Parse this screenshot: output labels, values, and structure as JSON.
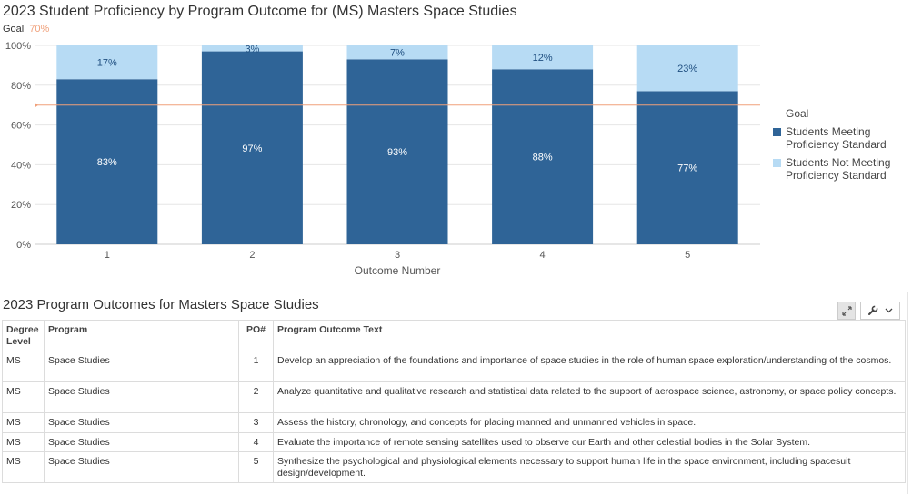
{
  "chart_data": {
    "type": "bar",
    "stacked": true,
    "title": "2023 Student Proficiency by Program Outcome for (MS) Masters Space Studies",
    "goal_label": "Goal",
    "goal_value_text": "70%",
    "goal": 70,
    "xlabel": "Outcome Number",
    "ylabel": "",
    "ylim": [
      0,
      100
    ],
    "y_ticks": [
      "0%",
      "20%",
      "40%",
      "60%",
      "80%",
      "100%"
    ],
    "categories": [
      "1",
      "2",
      "3",
      "4",
      "5"
    ],
    "series": [
      {
        "name": "Students Meeting Proficiency Standard",
        "values": [
          83,
          97,
          93,
          88,
          77
        ],
        "labels": [
          "83%",
          "97%",
          "93%",
          "88%",
          "77%"
        ],
        "color": "#2f6497"
      },
      {
        "name": "Students Not Meeting Proficiency Standard",
        "values": [
          17,
          3,
          7,
          12,
          23
        ],
        "labels": [
          "17%",
          "3%",
          "7%",
          "12%",
          "23%"
        ],
        "color": "#b7dbf4"
      }
    ],
    "goal_color": "#f0a07a",
    "grid": true,
    "legend_position": "right"
  },
  "legend": {
    "goal": "Goal",
    "meeting": "Students Meeting Proficiency Standard",
    "not_meeting": "Students Not Meeting Proficiency Standard"
  },
  "table": {
    "title": "2023 Program Outcomes for Masters Space Studies",
    "headers": {
      "degree_level": "Degree Level",
      "program": "Program",
      "po": "PO#",
      "text": "Program Outcome Text"
    },
    "rows": [
      {
        "degree": "MS",
        "program": "Space Studies",
        "po": "1",
        "text": "Develop an appreciation of the foundations and importance of space studies in the role of human space exploration/understanding of the cosmos."
      },
      {
        "degree": "MS",
        "program": "Space Studies",
        "po": "2",
        "text": "Analyze quantitative and qualitative research and statistical data related to the support of aerospace science, astronomy, or space policy concepts."
      },
      {
        "degree": "MS",
        "program": "Space Studies",
        "po": "3",
        "text": "Assess the history, chronology, and concepts for placing manned and unmanned vehicles in space."
      },
      {
        "degree": "MS",
        "program": "Space Studies",
        "po": "4",
        "text": "Evaluate the importance of remote sensing satellites used to observe our Earth and other celestial bodies in the Solar System."
      },
      {
        "degree": "MS",
        "program": "Space Studies",
        "po": "5",
        "text": "Synthesize the psychological and physiological elements necessary to support human life in the space environment, including spacesuit design/development."
      }
    ]
  },
  "toolbar": {
    "expand_icon": "expand-icon",
    "wrench_icon": "wrench-icon",
    "chevron_icon": "chevron-down-icon"
  }
}
